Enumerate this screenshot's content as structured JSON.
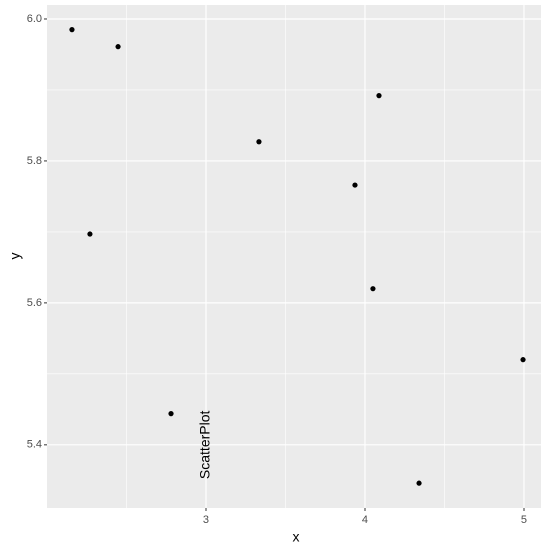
{
  "chart_data": {
    "type": "scatter",
    "x_label": "x",
    "y_label": "y",
    "x": [
      2.157,
      2.447,
      2.27,
      2.78,
      3.333,
      3.937,
      4.088,
      4.05,
      4.34,
      4.994
    ],
    "y": [
      5.985,
      5.961,
      5.697,
      5.444,
      5.827,
      5.766,
      5.892,
      5.62,
      5.346,
      5.52
    ],
    "color": "#000000",
    "xlim": [
      2.0,
      5.107
    ],
    "ylim": [
      5.311,
      6.0197
    ],
    "xticks": [
      3,
      4,
      5
    ],
    "yticks": [
      {
        "value": 5.4,
        "label": "5.4"
      },
      {
        "value": 5.6,
        "label": "5.6"
      },
      {
        "value": 5.8,
        "label": "5.8"
      },
      {
        "value": 6.0,
        "label": "6.0"
      }
    ],
    "minor_xgrid": [
      2.5,
      3.5,
      4.5
    ],
    "minor_ygrid": [
      5.5,
      5.7,
      5.9
    ],
    "grid": true,
    "annotations": [
      {
        "text": "ScatterPlot",
        "x": 3,
        "y": 5.4
      }
    ]
  }
}
